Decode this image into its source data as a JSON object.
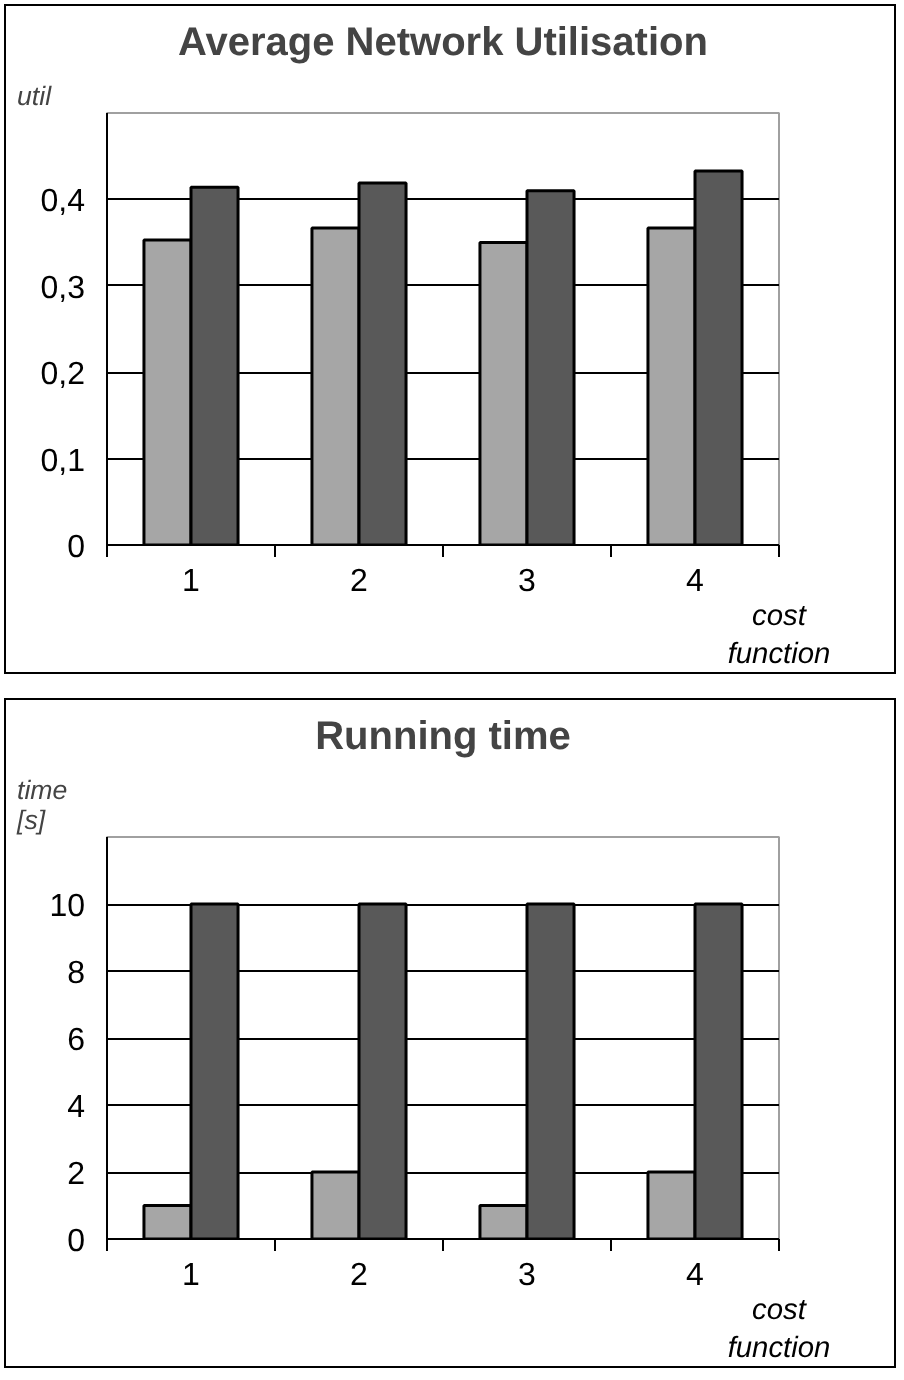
{
  "chart_data": [
    {
      "type": "bar",
      "title": "Average Network Utilisation",
      "ylabel": "util",
      "xlabel": "cost function",
      "categories": [
        "1",
        "2",
        "3",
        "4"
      ],
      "series": [
        {
          "color": "#a6a6a6",
          "values": [
            0.353,
            0.367,
            0.35,
            0.367
          ]
        },
        {
          "color": "#595959",
          "values": [
            0.414,
            0.419,
            0.41,
            0.433
          ]
        }
      ],
      "ylim": [
        0,
        0.5
      ],
      "yticks": [
        {
          "value": 0,
          "label": "0"
        },
        {
          "value": 0.1,
          "label": "0,1"
        },
        {
          "value": 0.2,
          "label": "0,2"
        },
        {
          "value": 0.3,
          "label": "0,3"
        },
        {
          "value": 0.4,
          "label": "0,4"
        }
      ],
      "grid": "y"
    },
    {
      "type": "bar",
      "title": "Running time",
      "ylabel": "time [s]",
      "xlabel": "cost function",
      "categories": [
        "1",
        "2",
        "3",
        "4"
      ],
      "series": [
        {
          "color": "#a6a6a6",
          "values": [
            1,
            2,
            1,
            2
          ]
        },
        {
          "color": "#595959",
          "values": [
            10,
            10,
            10,
            10
          ]
        }
      ],
      "ylim": [
        0,
        12
      ],
      "yticks": [
        0,
        2,
        4,
        6,
        8,
        10
      ],
      "grid": "y"
    }
  ]
}
